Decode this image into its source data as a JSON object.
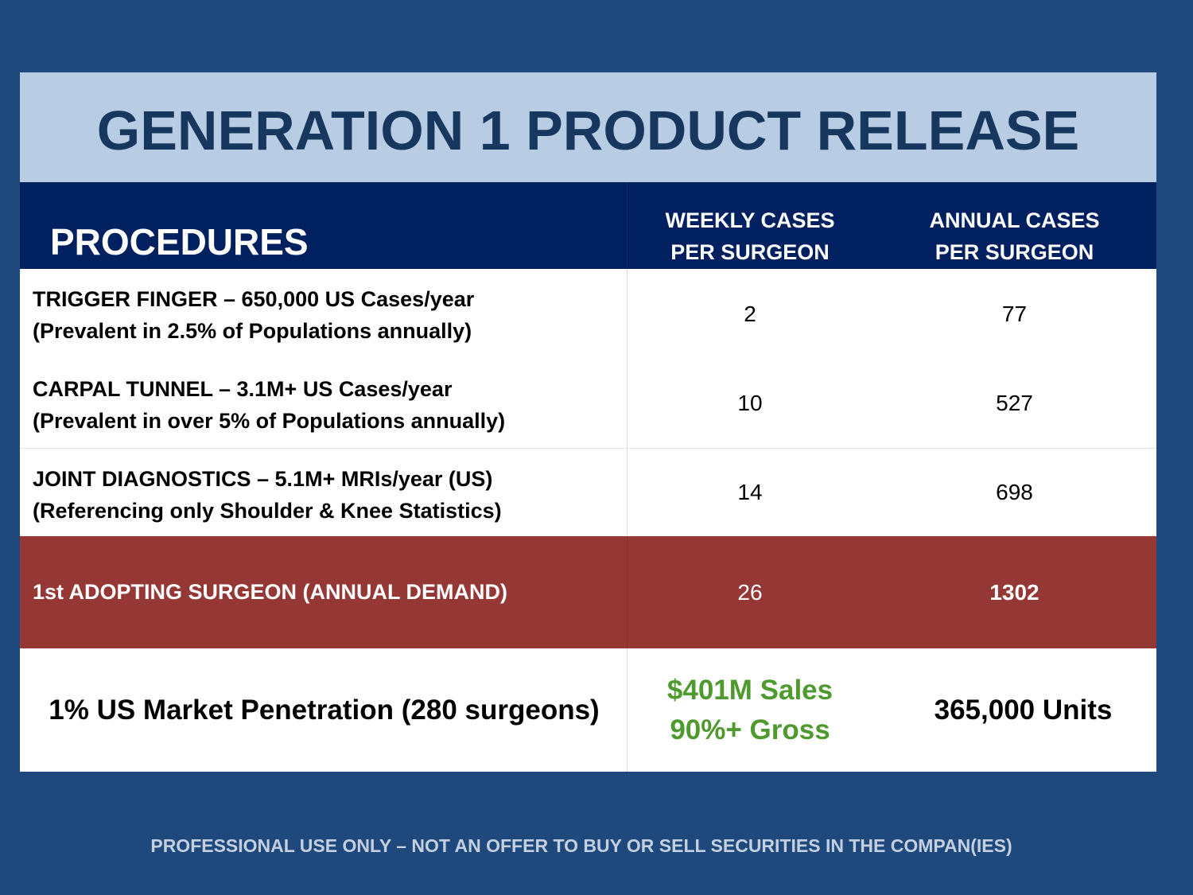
{
  "title": "GENERATION 1 PRODUCT RELEASE",
  "header": {
    "procedures": "PROCEDURES",
    "weekly_line1": "WEEKLY CASES",
    "weekly_line2": "PER SURGEON",
    "annual_line1": "ANNUAL CASES",
    "annual_line2": "PER SURGEON"
  },
  "rows": [
    {
      "line1": "TRIGGER FINGER – 650,000 US Cases/year",
      "line2": "(Prevalent in 2.5% of Populations annually)",
      "weekly": "2",
      "annual": "77"
    },
    {
      "line1": "CARPAL TUNNEL – 3.1M+ US Cases/year",
      "line2": "(Prevalent in over 5% of Populations annually)",
      "weekly": "10",
      "annual": "527"
    },
    {
      "line1": "JOINT DIAGNOSTICS – 5.1M+ MRIs/year (US)",
      "line2": "(Referencing only Shoulder & Knee Statistics)",
      "weekly": "14",
      "annual": "698"
    }
  ],
  "demand": {
    "label": "1st ADOPTING SURGEON (ANNUAL DEMAND)",
    "weekly": "26",
    "annual": "1302"
  },
  "market": {
    "label": "1% US Market Penetration (280 surgeons)",
    "sales_line1": "$401M Sales",
    "sales_line2": "90%+ Gross",
    "units": "365,000 Units"
  },
  "footer": "PROFESSIONAL USE ONLY – NOT AN OFFER TO BUY OR SELL SECURITIES IN THE COMPAN(IES)",
  "colors": {
    "background": "#1f497d",
    "title_band": "#b8cce4",
    "title_text": "#17375e",
    "header_band": "#002060",
    "demand_band": "#953735",
    "sales_text": "#4e9a2f"
  }
}
